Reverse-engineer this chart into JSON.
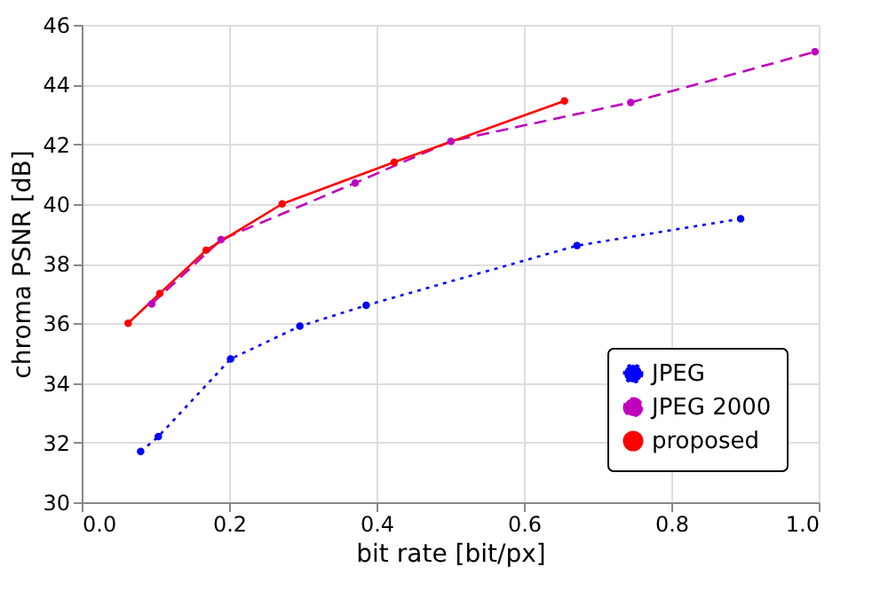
{
  "chart_data": {
    "type": "line",
    "xlabel": "bit rate [bit/px]",
    "ylabel": "chroma PSNR [dB]",
    "xlim": [
      0,
      1
    ],
    "xticks": [
      {
        "value": 0,
        "label": "0.0"
      },
      0.2,
      0.4,
      0.6,
      0.8,
      {
        "value": 1,
        "label": "1.0"
      }
    ],
    "ylim": [
      30,
      46
    ],
    "yticks": [
      30,
      32,
      34,
      36,
      38,
      40,
      42,
      44,
      46
    ],
    "grid": true,
    "legend": "bottom right",
    "marker": "circle",
    "series": [
      {
        "name": "JPEG",
        "color": "#0000ff",
        "line_style": "dotted",
        "x": [
          0.08,
          0.104,
          0.202,
          0.296,
          0.386,
          0.672,
          0.894
        ],
        "values": [
          31.7,
          32.2,
          34.8,
          35.9,
          36.6,
          38.6,
          39.5
        ]
      },
      {
        "name": "JPEG 2000",
        "color": "#bf00bf",
        "line_style": "dashed",
        "x": [
          0.095,
          0.189,
          0.371,
          0.501,
          0.745,
          0.995
        ],
        "values": [
          36.65,
          38.8,
          40.7,
          42.1,
          43.4,
          45.1
        ]
      },
      {
        "name": "proposed",
        "color": "#ff0000",
        "line_style": "solid",
        "x": [
          0.063,
          0.106,
          0.169,
          0.272,
          0.424,
          0.655
        ],
        "values": [
          36.0,
          37.0,
          38.45,
          40.0,
          41.4,
          43.45
        ]
      }
    ]
  }
}
